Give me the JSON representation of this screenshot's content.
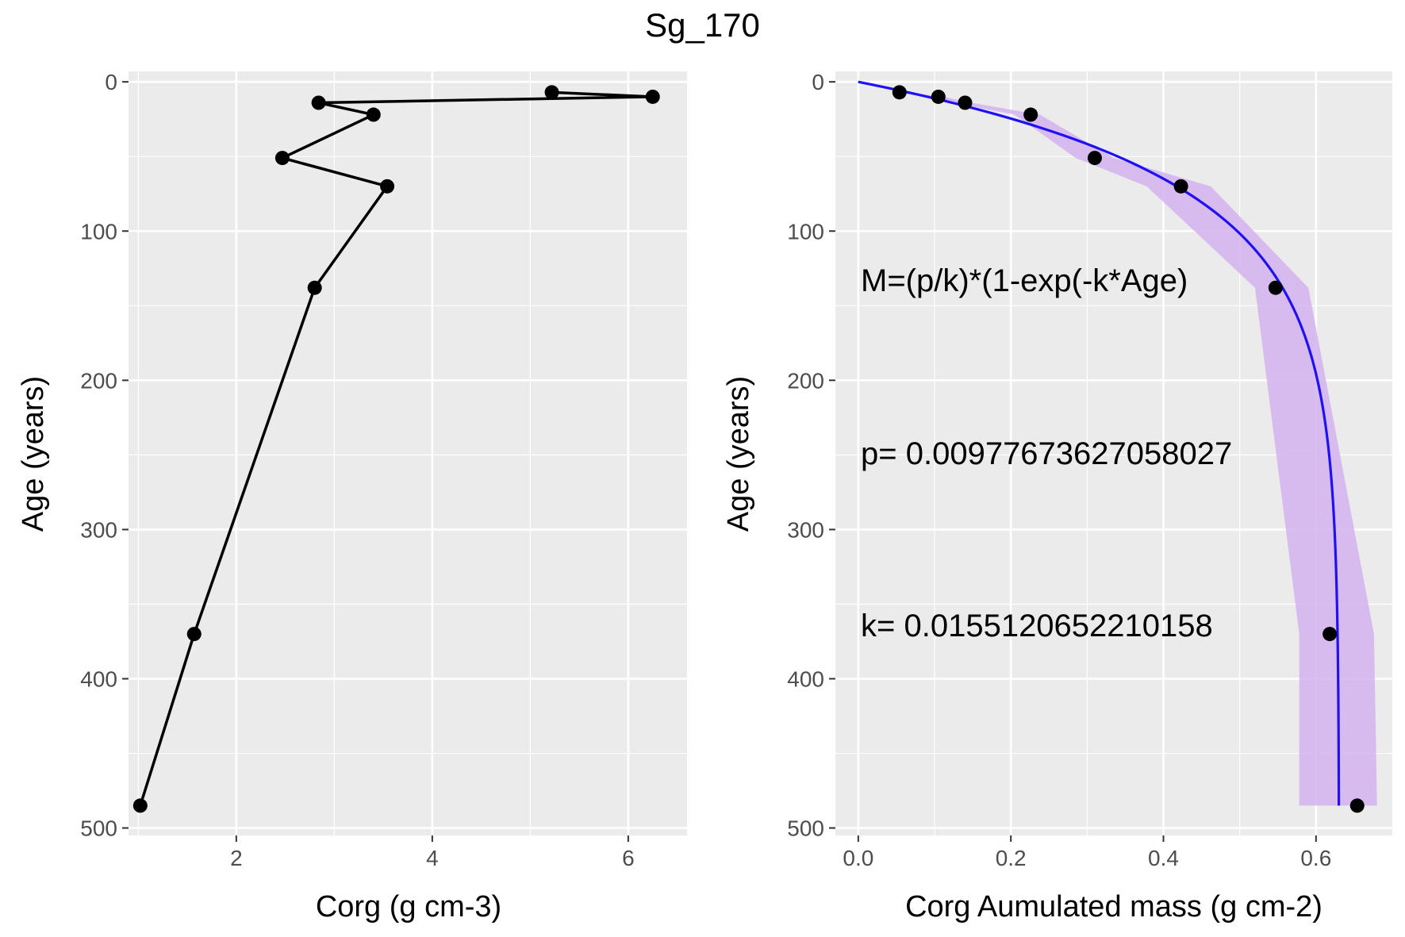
{
  "figure_title": "Sg_170",
  "colors": {
    "panel_bg": "#ebebeb",
    "grid": "#ffffff",
    "points": "#000000",
    "line": "#000000",
    "fit_line": "#1f10f5",
    "ribbon": "#d4b3f0"
  },
  "chart_data": [
    {
      "type": "line",
      "panel": "left",
      "xlabel": "Corg (g cm-3)",
      "ylabel": "Age (years)",
      "xlim": [
        0.9,
        6.6
      ],
      "ylim": [
        -7,
        505
      ],
      "y_reversed": true,
      "grid": true,
      "x_ticks": [
        2,
        4,
        6
      ],
      "x_tick_labels": [
        "2",
        "4",
        "6"
      ],
      "y_ticks": [
        0,
        100,
        200,
        300,
        400,
        500
      ],
      "y_tick_labels": [
        "0",
        "100",
        "200",
        "300",
        "400",
        "500"
      ],
      "series": [
        {
          "points": [
            {
              "x": 5.22,
              "y": 7
            },
            {
              "x": 6.25,
              "y": 10
            },
            {
              "x": 2.84,
              "y": 14
            },
            {
              "x": 3.4,
              "y": 22
            },
            {
              "x": 2.47,
              "y": 51
            },
            {
              "x": 3.54,
              "y": 70
            },
            {
              "x": 2.8,
              "y": 138
            },
            {
              "x": 1.57,
              "y": 370
            },
            {
              "x": 1.02,
              "y": 485
            }
          ]
        }
      ]
    },
    {
      "type": "scatter",
      "panel": "right",
      "xlabel": "Corg Aumulated mass (g cm-2)",
      "ylabel": "Age (years)",
      "xlim": [
        -0.03,
        0.7
      ],
      "ylim": [
        -7,
        505
      ],
      "y_reversed": true,
      "grid": true,
      "x_ticks": [
        0.0,
        0.2,
        0.4,
        0.6
      ],
      "x_tick_labels": [
        "0.0",
        "0.2",
        "0.4",
        "0.6"
      ],
      "y_ticks": [
        0,
        100,
        200,
        300,
        400,
        500
      ],
      "y_tick_labels": [
        "0",
        "100",
        "200",
        "300",
        "400",
        "500"
      ],
      "points": [
        {
          "x": 0.054,
          "y": 7
        },
        {
          "x": 0.105,
          "y": 10
        },
        {
          "x": 0.14,
          "y": 14
        },
        {
          "x": 0.226,
          "y": 22
        },
        {
          "x": 0.31,
          "y": 51
        },
        {
          "x": 0.423,
          "y": 70
        },
        {
          "x": 0.547,
          "y": 138
        },
        {
          "x": 0.618,
          "y": 370
        },
        {
          "x": 0.654,
          "y": 485
        }
      ],
      "fit": {
        "formula": "M=(p/k)*(1-exp(-k*Age)",
        "p_text": "p= 0.00977673627058027",
        "k_text": "k= 0.0155120652210158",
        "p": 0.00977673627058027,
        "k": 0.0155120652210158,
        "age_range": [
          0,
          485
        ]
      },
      "ribbon": [
        {
          "y": 7,
          "lower": 0.045,
          "upper": 0.06
        },
        {
          "y": 10,
          "lower": 0.09,
          "upper": 0.112
        },
        {
          "y": 14,
          "lower": 0.125,
          "upper": 0.148
        },
        {
          "y": 22,
          "lower": 0.205,
          "upper": 0.238
        },
        {
          "y": 51,
          "lower": 0.285,
          "upper": 0.335
        },
        {
          "y": 70,
          "lower": 0.378,
          "upper": 0.462
        },
        {
          "y": 138,
          "lower": 0.52,
          "upper": 0.59
        },
        {
          "y": 370,
          "lower": 0.578,
          "upper": 0.676
        },
        {
          "y": 485,
          "lower": 0.578,
          "upper": 0.68
        }
      ]
    }
  ]
}
